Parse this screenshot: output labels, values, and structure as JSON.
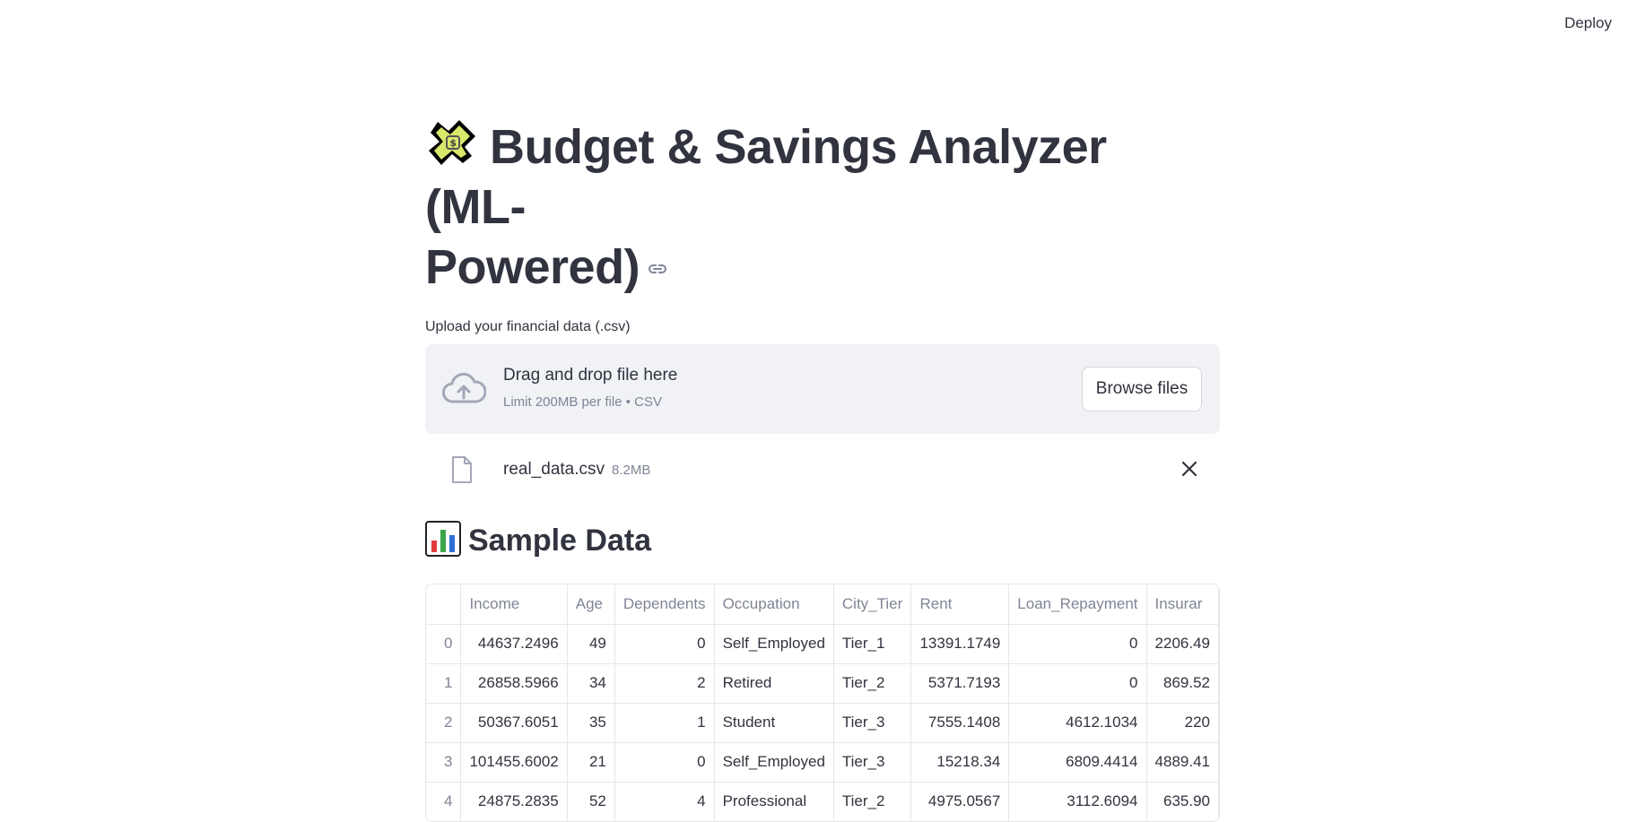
{
  "header": {
    "deploy_label": "Deploy"
  },
  "title": {
    "text": "Budget & Savings Analyzer (ML-Powered)",
    "line1": "Budget & Savings Analyzer (ML-",
    "line2": "Powered)"
  },
  "uploader": {
    "label": "Upload your financial data (.csv)",
    "drop_text": "Drag and drop file here",
    "limit_text": "Limit 200MB per file • CSV",
    "browse_label": "Browse files",
    "file": {
      "name": "real_data.csv",
      "size": "8.2MB"
    }
  },
  "section": {
    "title": "Sample Data"
  },
  "table": {
    "columns": [
      "",
      "Income",
      "Age",
      "Dependents",
      "Occupation",
      "City_Tier",
      "Rent",
      "Loan_Repayment",
      "Insurar"
    ],
    "rows": [
      [
        "0",
        "44637.2496",
        "49",
        "0",
        "Self_Employed",
        "Tier_1",
        "13391.1749",
        "0",
        "2206.49"
      ],
      [
        "1",
        "26858.5966",
        "34",
        "2",
        "Retired",
        "Tier_2",
        "5371.7193",
        "0",
        "869.52"
      ],
      [
        "2",
        "50367.6051",
        "35",
        "1",
        "Student",
        "Tier_3",
        "7555.1408",
        "4612.1034",
        "220"
      ],
      [
        "3",
        "101455.6002",
        "21",
        "0",
        "Self_Employed",
        "Tier_3",
        "15218.34",
        "6809.4414",
        "4889.41"
      ],
      [
        "4",
        "24875.2835",
        "52",
        "4",
        "Professional",
        "Tier_2",
        "4975.0567",
        "3112.6094",
        "635.90"
      ]
    ]
  }
}
